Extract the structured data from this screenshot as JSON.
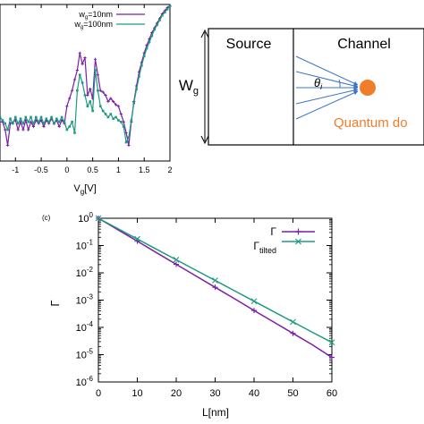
{
  "colors": {
    "purple": "#7a1fa6",
    "green": "#1d9a7f",
    "orange": "#f07d2a",
    "arrow": "#3b74c7"
  },
  "chart_data": [
    {
      "type": "line",
      "panel": "a",
      "xlabel": "V_g[V]",
      "xlabel_main": "V",
      "xlabel_sub": "g",
      "xlabel_tail": "[V]",
      "ylabel": "",
      "xlim": [
        -1.3,
        2.0
      ],
      "ylim": [
        0,
        1
      ],
      "x_ticks": [
        "-1",
        "-0.5",
        "0",
        "0.5",
        "1",
        "1.5",
        "2"
      ],
      "legend_position": "top-right",
      "series": [
        {
          "name": "w_g=10nm",
          "legend_main": "w",
          "legend_sub": "g",
          "legend_tail": "=10nm",
          "color": "#7a1fa6",
          "points": [
            [
              -1.3,
              0.25
            ],
            [
              -1.25,
              0.25
            ],
            [
              -1.2,
              0.2
            ],
            [
              -1.15,
              0.1
            ],
            [
              -1.1,
              0.24
            ],
            [
              -1.0,
              0.26
            ],
            [
              -0.95,
              0.2
            ],
            [
              -0.9,
              0.25
            ],
            [
              -0.85,
              0.2
            ],
            [
              -0.8,
              0.26
            ],
            [
              -0.75,
              0.2
            ],
            [
              -0.7,
              0.25
            ],
            [
              -0.65,
              0.22
            ],
            [
              -0.6,
              0.26
            ],
            [
              -0.55,
              0.24
            ],
            [
              -0.5,
              0.26
            ],
            [
              -0.45,
              0.22
            ],
            [
              -0.4,
              0.26
            ],
            [
              -0.35,
              0.24
            ],
            [
              -0.3,
              0.27
            ],
            [
              -0.25,
              0.24
            ],
            [
              -0.2,
              0.26
            ],
            [
              -0.15,
              0.22
            ],
            [
              -0.1,
              0.26
            ],
            [
              -0.05,
              0.24
            ],
            [
              0.0,
              0.35
            ],
            [
              0.05,
              0.4
            ],
            [
              0.1,
              0.45
            ],
            [
              0.15,
              0.52
            ],
            [
              0.2,
              0.58
            ],
            [
              0.25,
              0.69
            ],
            [
              0.3,
              0.62
            ],
            [
              0.35,
              0.66
            ],
            [
              0.4,
              0.42
            ],
            [
              0.45,
              0.46
            ],
            [
              0.5,
              0.4
            ],
            [
              0.55,
              0.65
            ],
            [
              0.6,
              0.55
            ],
            [
              0.65,
              0.45
            ],
            [
              0.7,
              0.44
            ],
            [
              0.75,
              0.42
            ],
            [
              0.8,
              0.38
            ],
            [
              0.85,
              0.4
            ],
            [
              0.9,
              0.38
            ],
            [
              0.95,
              0.36
            ],
            [
              1.0,
              0.35
            ],
            [
              1.05,
              0.3
            ],
            [
              1.1,
              0.25
            ],
            [
              1.15,
              0.18
            ],
            [
              1.2,
              0.1
            ],
            [
              1.25,
              0.25
            ],
            [
              1.3,
              0.38
            ],
            [
              1.35,
              0.48
            ],
            [
              1.4,
              0.57
            ],
            [
              1.45,
              0.63
            ],
            [
              1.5,
              0.69
            ],
            [
              1.55,
              0.74
            ],
            [
              1.6,
              0.78
            ],
            [
              1.65,
              0.82
            ],
            [
              1.7,
              0.85
            ],
            [
              1.75,
              0.88
            ],
            [
              1.8,
              0.91
            ],
            [
              1.85,
              0.94
            ],
            [
              1.9,
              0.96
            ],
            [
              1.95,
              0.98
            ],
            [
              2.0,
              0.99
            ]
          ]
        },
        {
          "name": "w_g=100nm",
          "legend_main": "w",
          "legend_sub": "g",
          "legend_tail": "=100nm",
          "color": "#1d9a7f",
          "points": [
            [
              -1.3,
              0.28
            ],
            [
              -1.25,
              0.26
            ],
            [
              -1.2,
              0.24
            ],
            [
              -1.15,
              0.2
            ],
            [
              -1.1,
              0.27
            ],
            [
              -1.05,
              0.24
            ],
            [
              -1.0,
              0.28
            ],
            [
              -0.95,
              0.24
            ],
            [
              -0.9,
              0.27
            ],
            [
              -0.85,
              0.24
            ],
            [
              -0.8,
              0.28
            ],
            [
              -0.75,
              0.25
            ],
            [
              -0.7,
              0.28
            ],
            [
              -0.65,
              0.24
            ],
            [
              -0.6,
              0.28
            ],
            [
              -0.55,
              0.25
            ],
            [
              -0.5,
              0.28
            ],
            [
              -0.45,
              0.24
            ],
            [
              -0.4,
              0.27
            ],
            [
              -0.35,
              0.25
            ],
            [
              -0.3,
              0.28
            ],
            [
              -0.25,
              0.24
            ],
            [
              -0.2,
              0.27
            ],
            [
              -0.15,
              0.25
            ],
            [
              -0.1,
              0.28
            ],
            [
              -0.05,
              0.25
            ],
            [
              0.0,
              0.2
            ],
            [
              0.05,
              0.22
            ],
            [
              0.1,
              0.25
            ],
            [
              0.15,
              0.18
            ],
            [
              0.2,
              0.45
            ],
            [
              0.25,
              0.55
            ],
            [
              0.3,
              0.5
            ],
            [
              0.35,
              0.42
            ],
            [
              0.4,
              0.35
            ],
            [
              0.45,
              0.38
            ],
            [
              0.5,
              0.32
            ],
            [
              0.55,
              0.58
            ],
            [
              0.6,
              0.45
            ],
            [
              0.65,
              0.35
            ],
            [
              0.7,
              0.32
            ],
            [
              0.75,
              0.3
            ],
            [
              0.8,
              0.28
            ],
            [
              0.85,
              0.3
            ],
            [
              0.9,
              0.27
            ],
            [
              0.95,
              0.28
            ],
            [
              1.0,
              0.26
            ],
            [
              1.05,
              0.25
            ],
            [
              1.1,
              0.22
            ],
            [
              1.15,
              0.12
            ],
            [
              1.2,
              0.15
            ],
            [
              1.25,
              0.26
            ],
            [
              1.3,
              0.37
            ],
            [
              1.35,
              0.46
            ],
            [
              1.4,
              0.54
            ],
            [
              1.45,
              0.61
            ],
            [
              1.5,
              0.67
            ],
            [
              1.55,
              0.72
            ],
            [
              1.6,
              0.76
            ],
            [
              1.65,
              0.8
            ],
            [
              1.7,
              0.84
            ],
            [
              1.75,
              0.87
            ],
            [
              1.8,
              0.9
            ],
            [
              1.85,
              0.93
            ],
            [
              1.9,
              0.95
            ],
            [
              1.95,
              0.97
            ],
            [
              2.0,
              0.99
            ]
          ]
        }
      ]
    },
    {
      "type": "line",
      "panel": "c",
      "panel_label": "(c)",
      "xlabel": "L[nm]",
      "ylabel": "Γ",
      "xlim": [
        0,
        60
      ],
      "ylim_log10": [
        -6,
        0
      ],
      "y_scale": "log",
      "x_ticks": [
        "0",
        "10",
        "20",
        "30",
        "40",
        "50",
        "60"
      ],
      "y_tick_exponents": [
        "0",
        "-1",
        "-2",
        "-3",
        "-4",
        "-5",
        "-6"
      ],
      "y_tick_base": "10",
      "legend_position": "top-right",
      "series": [
        {
          "name": "Γ",
          "legend_main": "Γ",
          "legend_sub": "",
          "color": "#7a1fa6",
          "marker": "plus",
          "x": [
            0,
            5,
            10,
            15,
            20,
            25,
            30,
            35,
            40,
            45,
            50,
            55,
            60
          ],
          "log10_y": [
            0,
            -0.42,
            -0.84,
            -1.27,
            -1.69,
            -2.11,
            -2.53,
            -2.95,
            -3.38,
            -3.8,
            -4.22,
            -4.64,
            -5.1
          ]
        },
        {
          "name": "Γ_tilted",
          "legend_main": "Γ",
          "legend_sub": "tilted",
          "color": "#1d9a7f",
          "marker": "cross",
          "x": [
            0,
            5,
            10,
            15,
            20,
            25,
            30,
            35,
            40,
            45,
            50,
            55,
            60
          ],
          "log10_y": [
            0,
            -0.38,
            -0.76,
            -1.14,
            -1.52,
            -1.9,
            -2.28,
            -2.66,
            -3.04,
            -3.42,
            -3.8,
            -4.18,
            -4.55
          ]
        }
      ]
    }
  ],
  "diagram": {
    "source_label": "Source",
    "channel_label": "Channel",
    "width_label_main": "W",
    "width_label_sub": "g",
    "angle_label_main": "θ",
    "angle_label_sub": "i",
    "dot_label": "Quantum do"
  }
}
